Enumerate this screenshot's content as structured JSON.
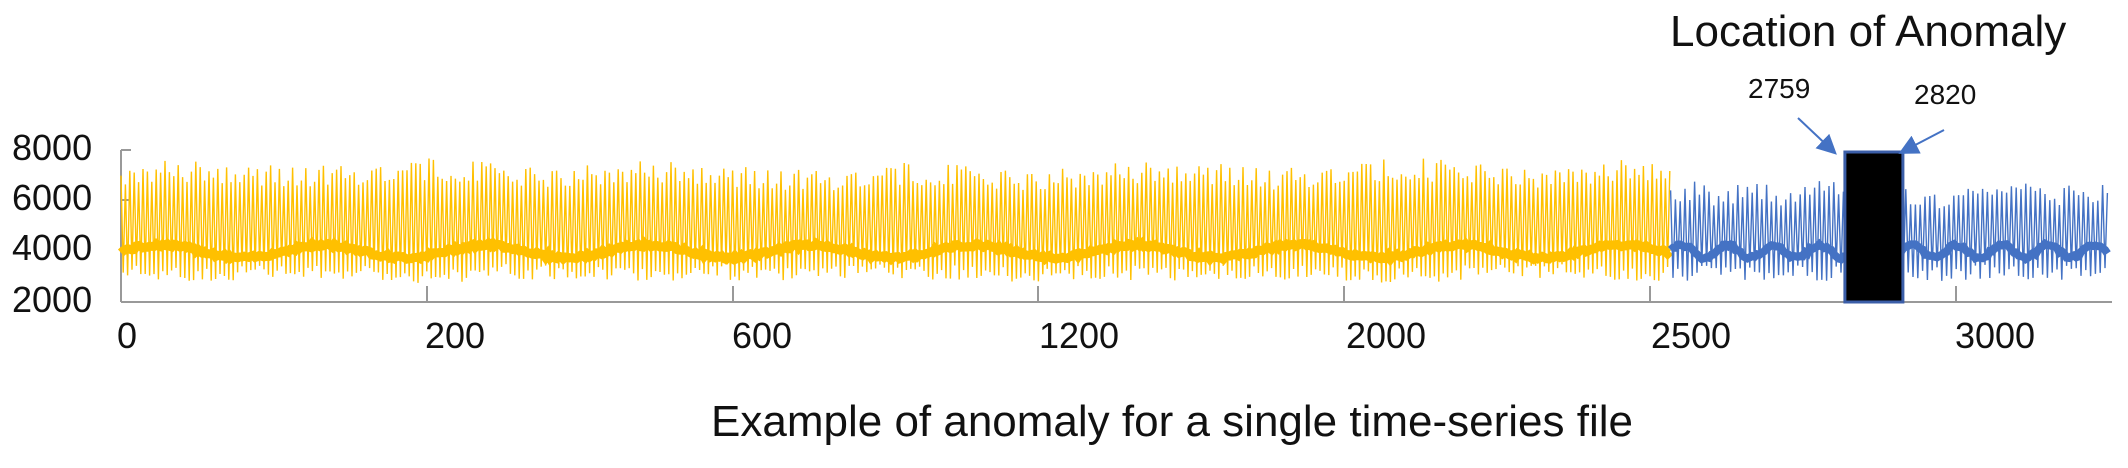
{
  "chart_data": {
    "type": "line",
    "title": "",
    "caption": "Example of anomaly for a single time-series file",
    "xlabel": "",
    "ylabel": "",
    "y_ticks": [
      "8000",
      "6000",
      "4000",
      "2000"
    ],
    "x_ticks": [
      "0",
      "200",
      "600",
      "1200",
      "2000",
      "2500",
      "3000"
    ],
    "ylim": [
      2000,
      8000
    ],
    "grid": false,
    "series": [
      {
        "segment": "normal",
        "color": "#FFC000",
        "x_range": [
          0,
          2480
        ],
        "upper_envelope": 7000,
        "lower_envelope": 3200,
        "mean": 4000
      },
      {
        "segment": "tail",
        "color": "#4472C4",
        "x_range": [
          2480,
          3180
        ],
        "upper_envelope": 6200,
        "lower_envelope": 3200,
        "mean": 4000
      }
    ],
    "annotations": {
      "anomaly_label": "Location of Anomaly",
      "anomaly_start_label": "2759",
      "anomaly_end_label": "2820",
      "anomaly_start": 2759,
      "anomaly_end": 2820,
      "region_color": "#000000",
      "arrow_color": "#4472C4"
    }
  }
}
